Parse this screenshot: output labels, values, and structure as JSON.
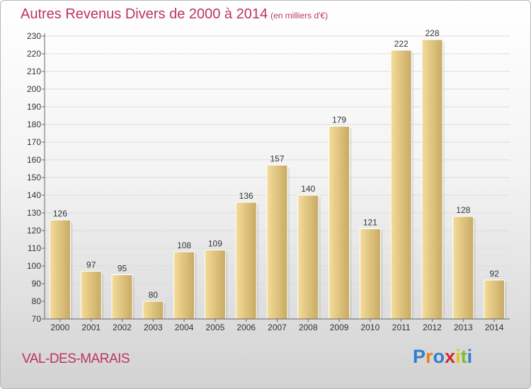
{
  "title": "Autres Revenus Divers de 2000 à 2014",
  "subtitle": "(en milliers d'€)",
  "place": "VAL-DES-MARAIS",
  "logo": {
    "text": "Proxiti",
    "letter_colors": [
      "#2e7fd1",
      "#e8801c",
      "#2e7fd1",
      "#cc2e2e",
      "#e8c21c",
      "#7fbb33",
      "#2e7fd1"
    ]
  },
  "colors": {
    "title": "#bb3366",
    "bar_light": "#f5dc9a",
    "bar_dark": "#c7aa63",
    "grid": "#dcdcdc"
  },
  "chart_data": {
    "type": "bar",
    "title": "Autres Revenus Divers de 2000 à 2014",
    "subtitle": "(en milliers d'€)",
    "categories": [
      "2000",
      "2001",
      "2002",
      "2003",
      "2004",
      "2005",
      "2006",
      "2007",
      "2008",
      "2009",
      "2010",
      "2011",
      "2012",
      "2013",
      "2014"
    ],
    "values": [
      126,
      97,
      95,
      80,
      108,
      109,
      136,
      157,
      140,
      179,
      121,
      222,
      228,
      128,
      92
    ],
    "ylim": [
      70,
      230
    ],
    "ytick_step": 10,
    "grid": true
  }
}
